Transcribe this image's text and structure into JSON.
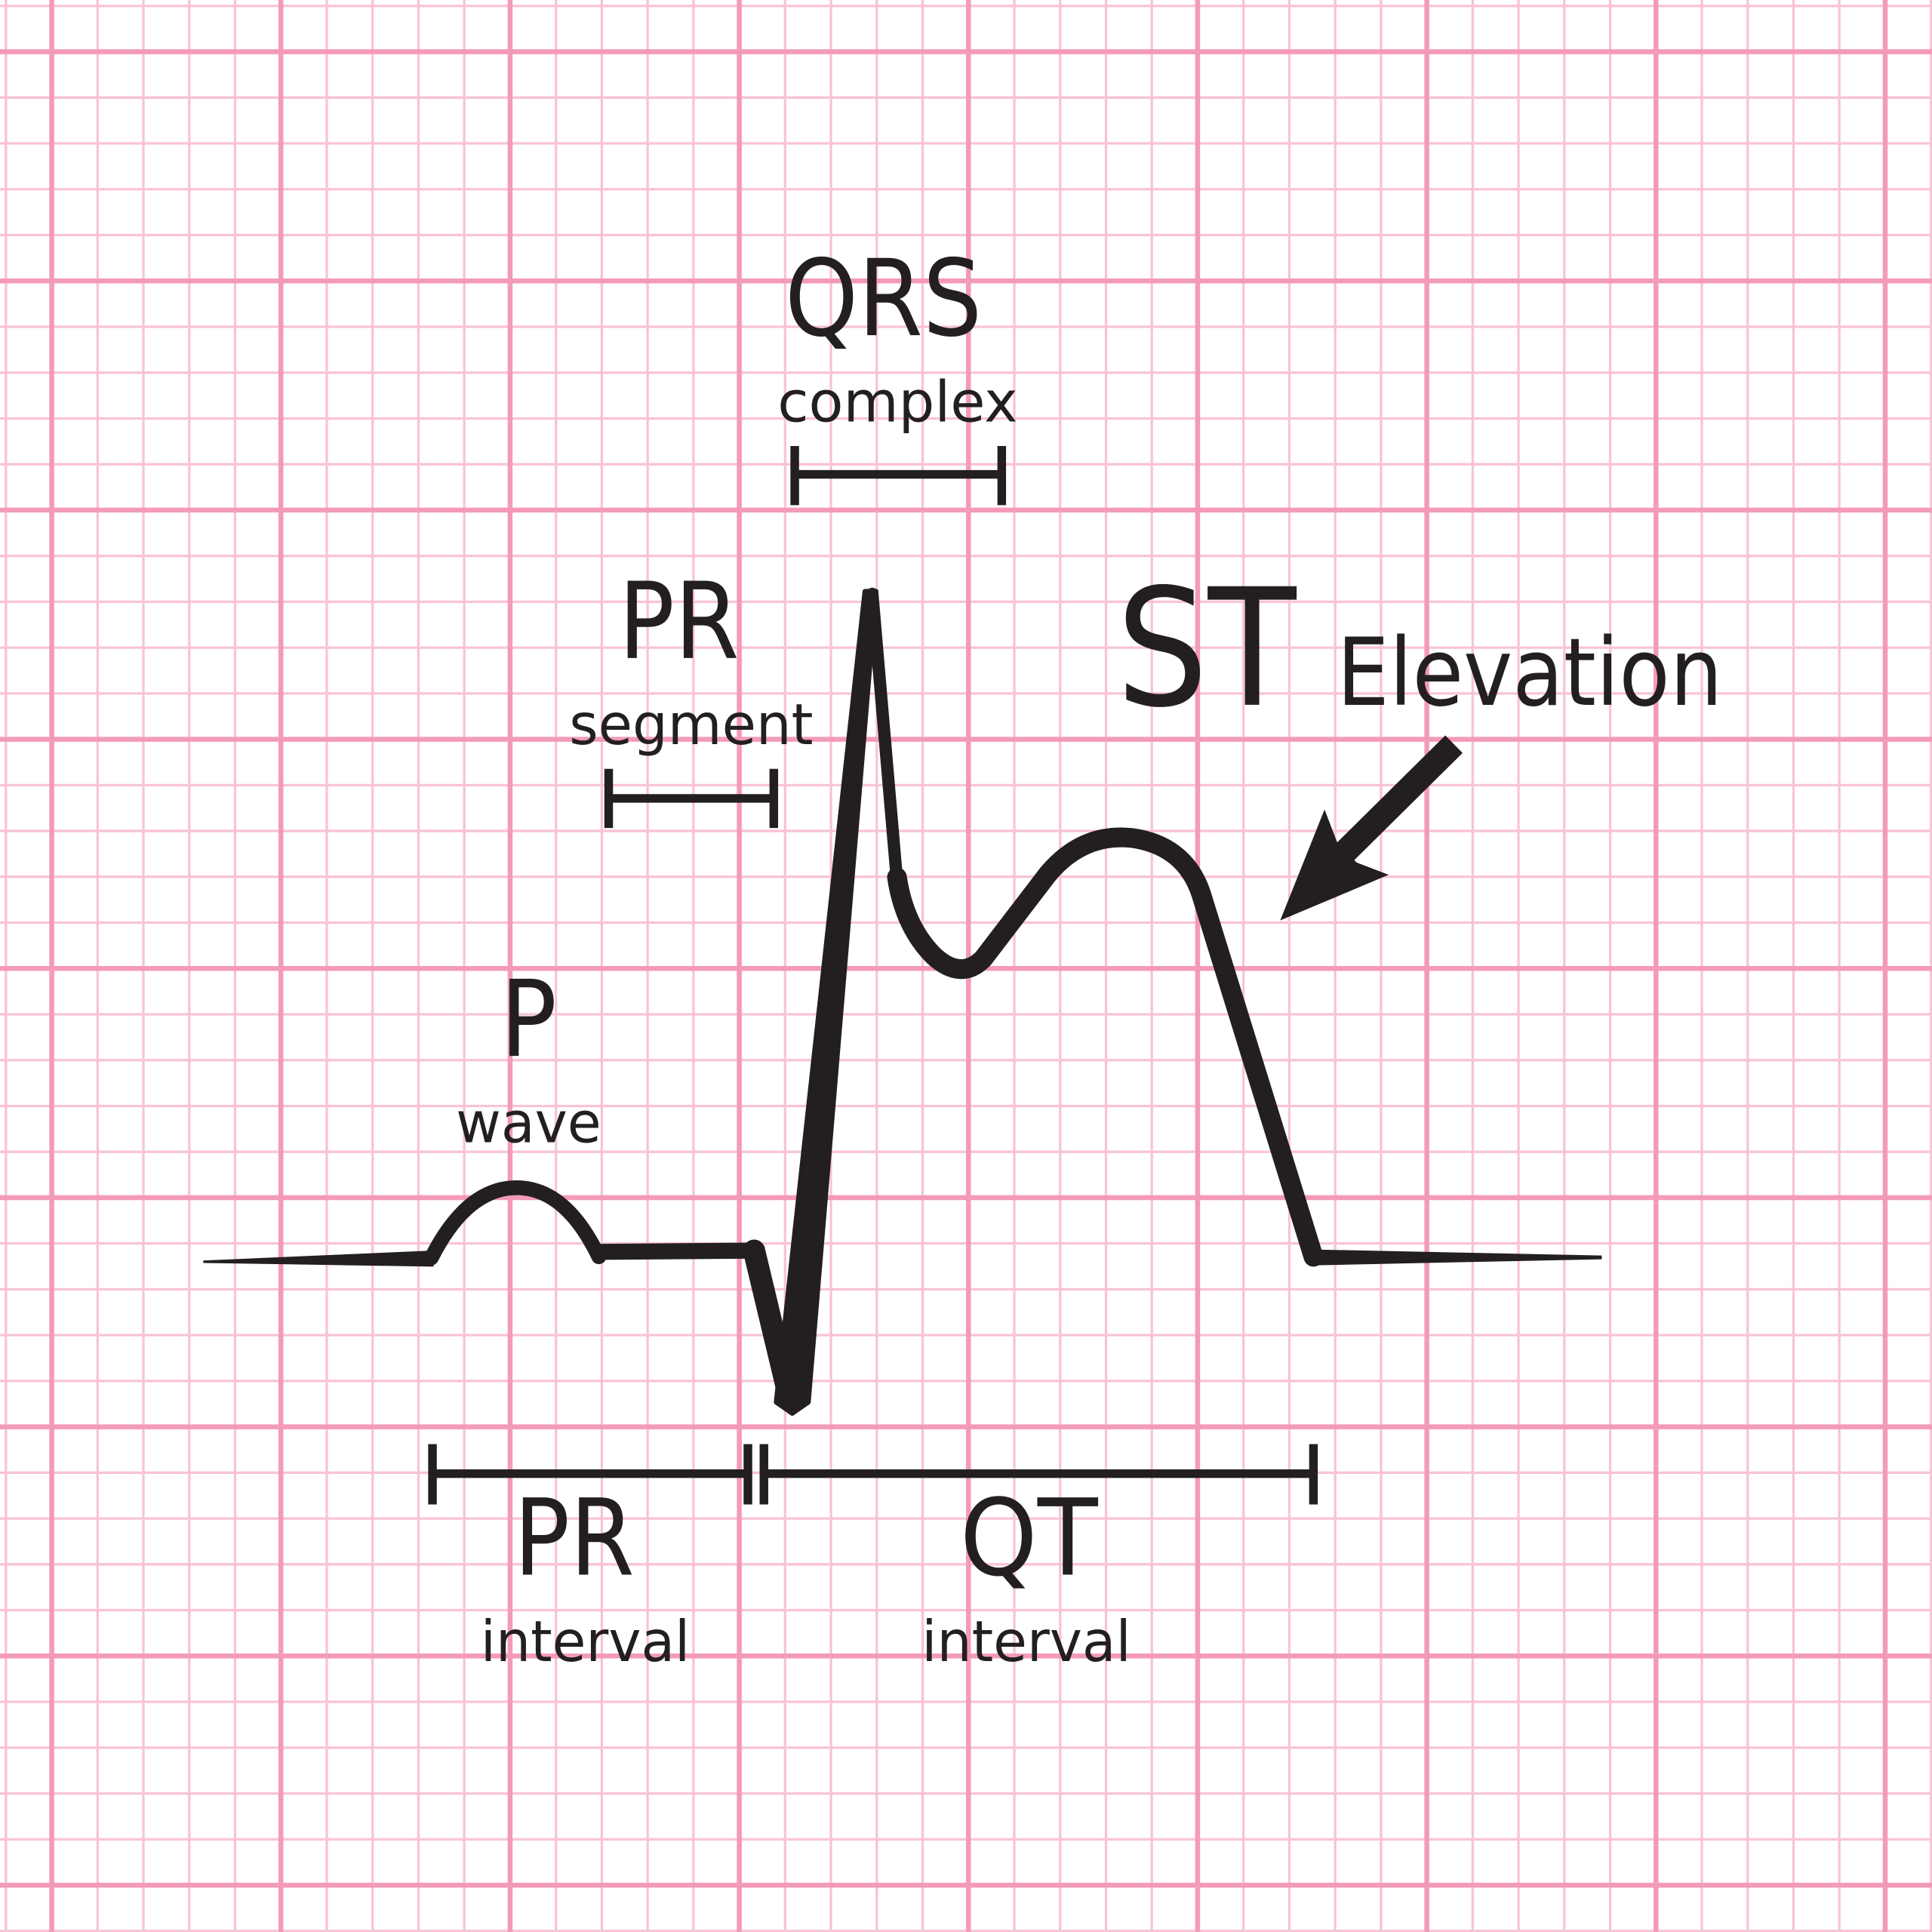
{
  "colors": {
    "background": "#ffffff",
    "grid_major": "#f49ab9",
    "grid_minor": "#f9c3d4",
    "trace": "#231f20"
  },
  "labels": {
    "qrs": {
      "title": "QRS",
      "subtitle": "complex"
    },
    "pr_segment": {
      "title": "PR",
      "subtitle": "segment"
    },
    "st_elevation": {
      "title": "ST",
      "subtitle": "Elevation"
    },
    "p_wave": {
      "title": "P",
      "subtitle": "wave"
    },
    "pr_interval": {
      "title": "PR",
      "subtitle": "interval"
    },
    "qt_interval": {
      "title": "QT",
      "subtitle": "interval"
    }
  },
  "icons": {
    "arrow": "arrow-down-left-icon"
  }
}
